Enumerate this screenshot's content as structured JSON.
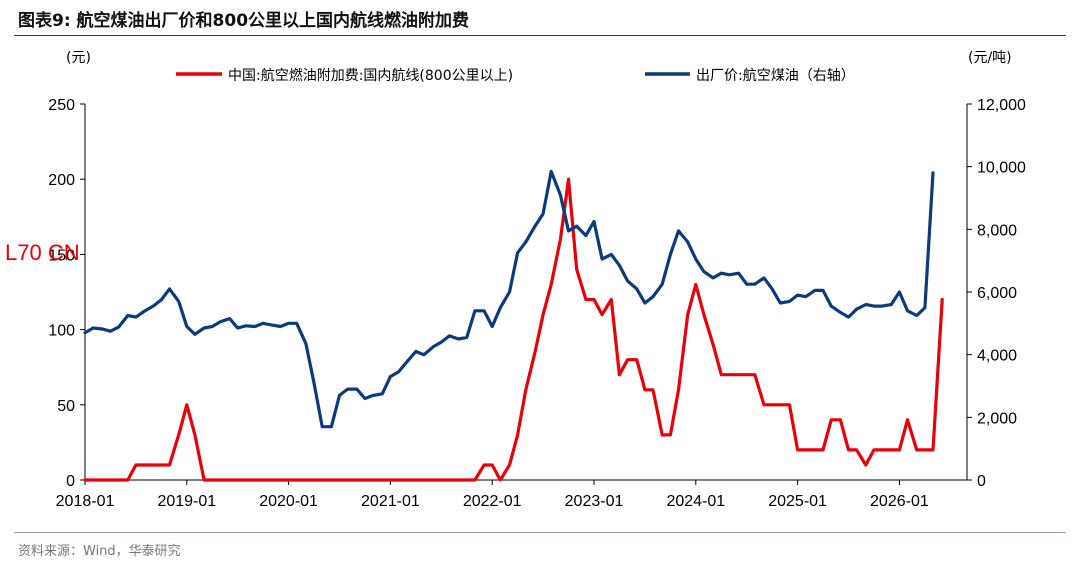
{
  "figure": {
    "title": "图表9:  航空煤油出厂价和800公里以上国内航线燃油附加费",
    "source": "资料来源：Wind，华泰研究",
    "watermark": "L70 CN"
  },
  "colors": {
    "surcharge": "#e8000b",
    "jet_fuel": "#0c3a7a",
    "rule": "#1f3a66"
  },
  "chart_data": {
    "type": "line",
    "left_unit": "(元)",
    "right_unit": "(元/吨)",
    "x_ticks": [
      "2018-01",
      "2019-01",
      "2020-01",
      "2021-01",
      "2022-01",
      "2023-01",
      "2024-01",
      "2025-01",
      "2026-01"
    ],
    "x_range": [
      2018.0,
      2026.3
    ],
    "y_left": {
      "ticks": [
        "0",
        "50",
        "100",
        "150",
        "200",
        "250"
      ],
      "range": [
        0,
        250
      ]
    },
    "y_right": {
      "ticks": [
        "0",
        "2,000",
        "4,000",
        "6,000",
        "8,000",
        "10,000",
        "12,000"
      ],
      "range": [
        0,
        12000
      ]
    },
    "legend": "top",
    "series": [
      {
        "name": "中国:航空燃油附加费:国内航线(800公里以上)",
        "axis": "left",
        "color": "#e8000b",
        "points": [
          [
            2018.0,
            0
          ],
          [
            2018.42,
            0
          ],
          [
            2018.5,
            10
          ],
          [
            2018.83,
            10
          ],
          [
            2018.92,
            30
          ],
          [
            2019.0,
            50
          ],
          [
            2019.08,
            30
          ],
          [
            2019.17,
            0
          ],
          [
            2021.83,
            0
          ],
          [
            2021.92,
            10
          ],
          [
            2022.0,
            10
          ],
          [
            2022.08,
            0
          ],
          [
            2022.17,
            10
          ],
          [
            2022.25,
            30
          ],
          [
            2022.33,
            60
          ],
          [
            2022.42,
            85
          ],
          [
            2022.5,
            110
          ],
          [
            2022.58,
            130
          ],
          [
            2022.67,
            160
          ],
          [
            2022.75,
            200
          ],
          [
            2022.83,
            140
          ],
          [
            2022.92,
            120
          ],
          [
            2023.0,
            120
          ],
          [
            2023.08,
            110
          ],
          [
            2023.17,
            120
          ],
          [
            2023.25,
            70
          ],
          [
            2023.33,
            80
          ],
          [
            2023.42,
            80
          ],
          [
            2023.5,
            60
          ],
          [
            2023.58,
            60
          ],
          [
            2023.67,
            30
          ],
          [
            2023.75,
            30
          ],
          [
            2023.83,
            60
          ],
          [
            2023.92,
            110
          ],
          [
            2024.0,
            130
          ],
          [
            2024.08,
            110
          ],
          [
            2024.17,
            90
          ],
          [
            2024.25,
            70
          ],
          [
            2024.33,
            70
          ],
          [
            2024.58,
            70
          ],
          [
            2024.67,
            50
          ],
          [
            2024.92,
            50
          ],
          [
            2025.0,
            20
          ],
          [
            2025.25,
            20
          ],
          [
            2025.33,
            40
          ],
          [
            2025.42,
            40
          ],
          [
            2025.5,
            20
          ],
          [
            2025.58,
            20
          ],
          [
            2025.67,
            10
          ],
          [
            2025.75,
            20
          ],
          [
            2026.0,
            20
          ],
          [
            2026.08,
            40
          ],
          [
            2026.17,
            20
          ],
          [
            2026.33,
            20
          ],
          [
            2026.42,
            120
          ]
        ]
      },
      {
        "name": "出厂价:航空煤油（右轴）",
        "axis": "right",
        "color": "#0c3a7a",
        "points": [
          [
            2018.0,
            4700
          ],
          [
            2018.08,
            4850
          ],
          [
            2018.17,
            4820
          ],
          [
            2018.25,
            4750
          ],
          [
            2018.33,
            4880
          ],
          [
            2018.42,
            5250
          ],
          [
            2018.5,
            5200
          ],
          [
            2018.58,
            5380
          ],
          [
            2018.67,
            5550
          ],
          [
            2018.75,
            5750
          ],
          [
            2018.83,
            6100
          ],
          [
            2018.92,
            5700
          ],
          [
            2019.0,
            4900
          ],
          [
            2019.08,
            4650
          ],
          [
            2019.17,
            4850
          ],
          [
            2019.25,
            4900
          ],
          [
            2019.33,
            5050
          ],
          [
            2019.42,
            5150
          ],
          [
            2019.5,
            4850
          ],
          [
            2019.58,
            4920
          ],
          [
            2019.67,
            4900
          ],
          [
            2019.75,
            5000
          ],
          [
            2019.83,
            4950
          ],
          [
            2019.92,
            4900
          ],
          [
            2020.0,
            5000
          ],
          [
            2020.08,
            5000
          ],
          [
            2020.17,
            4350
          ],
          [
            2020.25,
            3100
          ],
          [
            2020.33,
            1700
          ],
          [
            2020.42,
            1700
          ],
          [
            2020.5,
            2700
          ],
          [
            2020.58,
            2900
          ],
          [
            2020.67,
            2900
          ],
          [
            2020.75,
            2600
          ],
          [
            2020.83,
            2700
          ],
          [
            2020.92,
            2750
          ],
          [
            2021.0,
            3300
          ],
          [
            2021.08,
            3450
          ],
          [
            2021.17,
            3800
          ],
          [
            2021.25,
            4100
          ],
          [
            2021.33,
            4000
          ],
          [
            2021.42,
            4250
          ],
          [
            2021.5,
            4400
          ],
          [
            2021.58,
            4600
          ],
          [
            2021.67,
            4500
          ],
          [
            2021.75,
            4550
          ],
          [
            2021.83,
            5400
          ],
          [
            2021.92,
            5400
          ],
          [
            2022.0,
            4900
          ],
          [
            2022.08,
            5500
          ],
          [
            2022.17,
            6000
          ],
          [
            2022.25,
            7250
          ],
          [
            2022.33,
            7600
          ],
          [
            2022.42,
            8100
          ],
          [
            2022.5,
            8500
          ],
          [
            2022.58,
            9850
          ],
          [
            2022.67,
            9100
          ],
          [
            2022.75,
            7950
          ],
          [
            2022.83,
            8100
          ],
          [
            2022.92,
            7800
          ],
          [
            2023.0,
            8250
          ],
          [
            2023.08,
            7050
          ],
          [
            2023.17,
            7200
          ],
          [
            2023.25,
            6850
          ],
          [
            2023.33,
            6350
          ],
          [
            2023.42,
            6100
          ],
          [
            2023.5,
            5650
          ],
          [
            2023.58,
            5850
          ],
          [
            2023.67,
            6250
          ],
          [
            2023.75,
            7200
          ],
          [
            2023.83,
            7950
          ],
          [
            2023.92,
            7600
          ],
          [
            2024.0,
            7050
          ],
          [
            2024.08,
            6650
          ],
          [
            2024.17,
            6450
          ],
          [
            2024.25,
            6600
          ],
          [
            2024.33,
            6550
          ],
          [
            2024.42,
            6600
          ],
          [
            2024.5,
            6250
          ],
          [
            2024.58,
            6250
          ],
          [
            2024.67,
            6450
          ],
          [
            2024.75,
            6100
          ],
          [
            2024.83,
            5650
          ],
          [
            2024.92,
            5700
          ],
          [
            2025.0,
            5900
          ],
          [
            2025.08,
            5850
          ],
          [
            2025.17,
            6050
          ],
          [
            2025.25,
            6050
          ],
          [
            2025.33,
            5550
          ],
          [
            2025.42,
            5350
          ],
          [
            2025.5,
            5200
          ],
          [
            2025.58,
            5450
          ],
          [
            2025.67,
            5600
          ],
          [
            2025.75,
            5550
          ],
          [
            2025.83,
            5550
          ],
          [
            2025.92,
            5600
          ],
          [
            2026.0,
            6000
          ],
          [
            2026.08,
            5400
          ],
          [
            2026.17,
            5250
          ],
          [
            2026.25,
            5500
          ],
          [
            2026.33,
            9800
          ]
        ]
      }
    ]
  }
}
